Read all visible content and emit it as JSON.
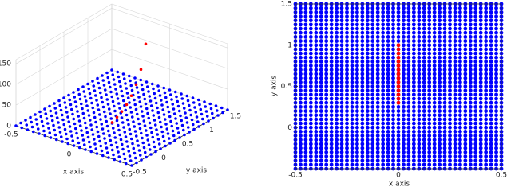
{
  "chart_data": [
    {
      "type": "scatter3d",
      "xlabel": "x axis",
      "ylabel": "y axis",
      "xlim": [
        -0.5,
        0.5
      ],
      "ylim": [
        -0.5,
        1.5
      ],
      "zlim": [
        0,
        160
      ],
      "xticks": [
        -0.5,
        0,
        0.5
      ],
      "yticks": [
        -0.5,
        0,
        0.5,
        1,
        1.5
      ],
      "zticks": [
        0,
        50,
        100,
        150
      ],
      "grid": true,
      "series": [
        {
          "color": "#0000ff",
          "grid_x": [
            -0.5,
            -0.45,
            -0.4,
            -0.35,
            -0.3,
            -0.25,
            -0.2,
            -0.15,
            -0.1,
            -0.05,
            0,
            0.05,
            0.1,
            0.15,
            0.2,
            0.25,
            0.3,
            0.35,
            0.4,
            0.45,
            0.5
          ],
          "grid_y": [
            -0.5,
            -0.4,
            -0.3,
            -0.2,
            -0.1,
            0,
            0.1,
            0.2,
            0.3,
            0.4,
            0.5,
            0.6,
            0.7,
            0.8,
            0.9,
            1,
            1.1,
            1.2,
            1.3,
            1.4,
            1.5
          ]
        },
        {
          "color": "#ff0000",
          "x": [
            0,
            0,
            0,
            0,
            0,
            0,
            0,
            0
          ],
          "y": [
            0.3,
            0.4,
            0.5,
            0.6,
            0.7,
            0.8,
            0.9,
            1.0
          ],
          "z": [
            2,
            8,
            15,
            25,
            40,
            60,
            90,
            145
          ]
        }
      ]
    },
    {
      "type": "scatter",
      "xlabel": "x axis",
      "ylabel": "y axis",
      "xlim": [
        -0.5,
        0.5
      ],
      "ylim": [
        -0.5,
        1.5
      ],
      "xticks": [
        -0.5,
        0,
        0.5
      ],
      "yticks": [
        0,
        0.5,
        1,
        1.5
      ],
      "series": [
        {
          "color": "#0000ff",
          "grid_x": [
            -0.5,
            -0.475,
            -0.45,
            -0.425,
            -0.4,
            -0.375,
            -0.35,
            -0.325,
            -0.3,
            -0.275,
            -0.25,
            -0.225,
            -0.2,
            -0.175,
            -0.15,
            -0.125,
            -0.1,
            -0.075,
            -0.05,
            -0.025,
            0,
            0.025,
            0.05,
            0.075,
            0.1,
            0.125,
            0.15,
            0.175,
            0.2,
            0.225,
            0.25,
            0.275,
            0.3,
            0.325,
            0.35,
            0.375,
            0.4,
            0.425,
            0.45,
            0.475,
            0.5
          ],
          "grid_y": [
            -0.5,
            -0.45,
            -0.4,
            -0.35,
            -0.3,
            -0.25,
            -0.2,
            -0.15,
            -0.1,
            -0.05,
            0,
            0.05,
            0.1,
            0.15,
            0.2,
            0.25,
            0.3,
            0.35,
            0.4,
            0.45,
            0.5,
            0.55,
            0.6,
            0.65,
            0.7,
            0.75,
            0.8,
            0.85,
            0.9,
            0.95,
            1,
            1.05,
            1.1,
            1.15,
            1.2,
            1.25,
            1.3,
            1.35,
            1.4,
            1.45,
            1.5
          ]
        },
        {
          "color": "#ff0000",
          "x": [
            0,
            0,
            0,
            0,
            0,
            0,
            0,
            0,
            0,
            0,
            0,
            0,
            0,
            0,
            0
          ],
          "values": [
            0.3,
            0.35,
            0.4,
            0.45,
            0.5,
            0.55,
            0.6,
            0.65,
            0.7,
            0.75,
            0.8,
            0.85,
            0.9,
            0.95,
            1.0
          ]
        }
      ]
    }
  ]
}
